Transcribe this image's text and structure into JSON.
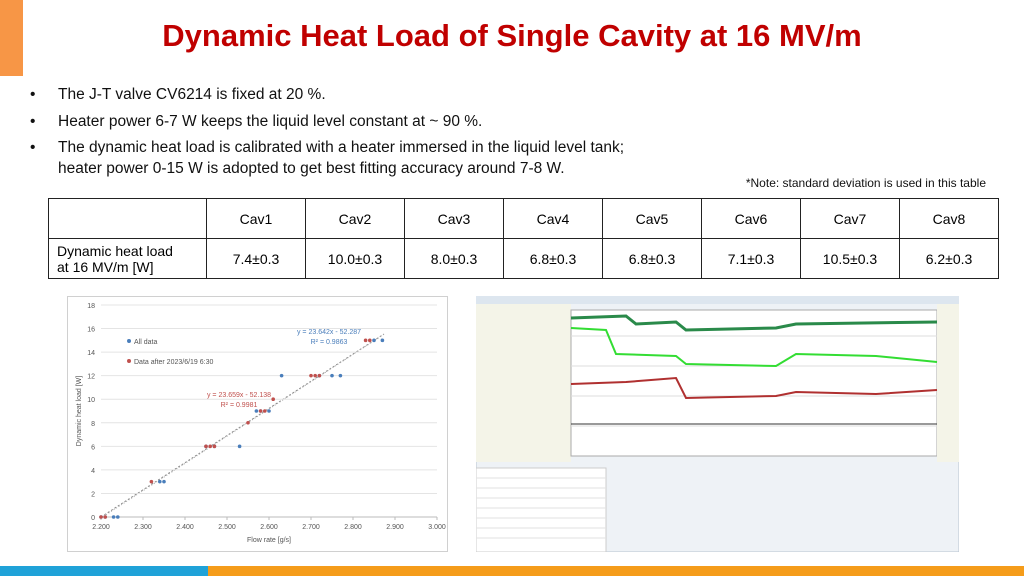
{
  "header": {
    "title": "Dynamic Heat Load of Single Cavity at 16 MV/m"
  },
  "bullets": [
    [
      "The J-T valve CV6214 is fixed at 20 %."
    ],
    [
      "Heater power 6-7 W keeps the liquid level constant at ~ 90 %."
    ],
    [
      "The dynamic heat load is calibrated with a heater immersed in the liquid level tank;",
      "heater power 0-15 W is adopted to get best fitting accuracy around 7-8 W."
    ]
  ],
  "note": "*Note: standard deviation is used in this table",
  "table": {
    "columns": [
      "Cav1",
      "Cav2",
      "Cav3",
      "Cav4",
      "Cav5",
      "Cav6",
      "Cav7",
      "Cav8"
    ],
    "rows": [
      {
        "label": [
          "Dynamic heat load",
          "at 16 MV/m [W]"
        ],
        "cells": [
          "7.4±0.3",
          "10.0±0.3",
          "8.0±0.3",
          "6.8±0.3",
          "6.8±0.3",
          "7.1±0.3",
          "10.5±0.3",
          "6.2±0.3"
        ]
      }
    ]
  },
  "chart_data": {
    "type": "scatter",
    "xlabel": "Flow rate [g/s]",
    "ylabel": "Dynamic heat load [W]",
    "xlim": [
      2.2,
      3.0
    ],
    "xticks": [
      {
        "value": 2.2,
        "label": "2.200"
      },
      {
        "value": 2.3,
        "label": "2.300"
      },
      {
        "value": 2.4,
        "label": "2.400"
      },
      {
        "value": 2.5,
        "label": "2.500"
      },
      {
        "value": 2.6,
        "label": "2.600"
      },
      {
        "value": 2.7,
        "label": "2.700"
      },
      {
        "value": 2.8,
        "label": "2.800"
      },
      {
        "value": 2.9,
        "label": "2.900"
      },
      {
        "value": 3.0,
        "label": "3.000"
      }
    ],
    "ylim": [
      0,
      18
    ],
    "yticks": [
      0,
      2,
      4,
      6,
      8,
      10,
      12,
      14,
      16,
      18
    ],
    "grid": true,
    "series": [
      {
        "name": "All data",
        "color": "#4a7ebb",
        "x": [
          2.2,
          2.21,
          2.23,
          2.24,
          2.34,
          2.35,
          2.45,
          2.47,
          2.53,
          2.57,
          2.58,
          2.6,
          2.63,
          2.72,
          2.75,
          2.77,
          2.85,
          2.87
        ],
        "values": [
          0,
          0,
          0,
          0,
          3,
          3,
          6,
          6,
          6,
          9,
          9,
          9,
          12,
          12,
          12,
          12,
          15,
          15
        ]
      },
      {
        "name": "Data after 2023/6/19 6:30",
        "color": "#c0504d",
        "x": [
          2.2,
          2.21,
          2.32,
          2.45,
          2.46,
          2.47,
          2.55,
          2.58,
          2.59,
          2.61,
          2.7,
          2.71,
          2.72,
          2.83,
          2.84
        ],
        "values": [
          0,
          0,
          3,
          6,
          6,
          6,
          8,
          9,
          9,
          10,
          12,
          12,
          12,
          15,
          15
        ]
      }
    ],
    "annotations": [
      "y = 23.642x - 52.287",
      "R² = 0.9863",
      "y = 23.659x - 52.138",
      "R² = 0.9981"
    ]
  }
}
